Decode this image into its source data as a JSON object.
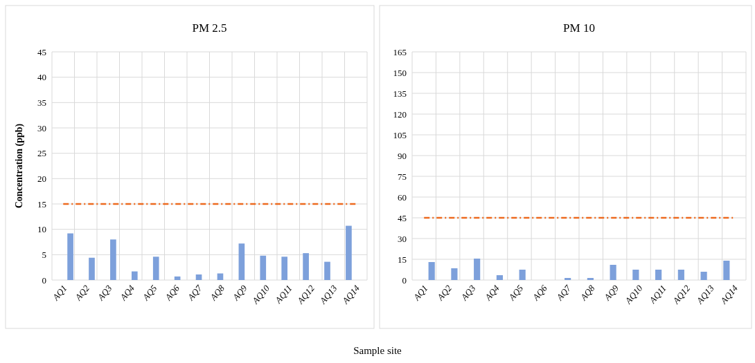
{
  "chart_data": [
    {
      "type": "bar",
      "title": "PM 2.5",
      "ylabel": "Concentration (ppb)",
      "xlabel": "Sample site",
      "categories": [
        "AQ1",
        "AQ2",
        "AQ3",
        "AQ4",
        "AQ5",
        "AQ6",
        "AQ7",
        "AQ8",
        "AQ9",
        "AQ10",
        "AQ11",
        "AQ12",
        "AQ13",
        "AQ14"
      ],
      "values": [
        9.2,
        4.4,
        8.0,
        1.7,
        4.6,
        0.7,
        1.1,
        1.3,
        7.2,
        4.8,
        4.6,
        5.3,
        3.6,
        10.7
      ],
      "color": "#7da0db",
      "ylim": [
        0,
        45
      ],
      "yticks": [
        0,
        5,
        10,
        15,
        20,
        25,
        30,
        35,
        40,
        45
      ],
      "grid": true,
      "ref_lines": [
        {
          "axis": "y",
          "value": 15,
          "color": "#ed6a1f",
          "line_style": "dashdot"
        }
      ]
    },
    {
      "type": "bar",
      "title": "PM 10",
      "categories": [
        "AQ1",
        "AQ2",
        "AQ3",
        "AQ4",
        "AQ5",
        "AQ6",
        "AQ7",
        "AQ8",
        "AQ9",
        "AQ10",
        "AQ11",
        "AQ12",
        "AQ13",
        "AQ14"
      ],
      "values": [
        13,
        8.5,
        15.5,
        3.5,
        7.5,
        0,
        1.5,
        1.5,
        11,
        7.5,
        7.5,
        7.5,
        6,
        14
      ],
      "color": "#7da0db",
      "ylim": [
        0,
        165
      ],
      "yticks": [
        0,
        15,
        30,
        45,
        60,
        75,
        90,
        105,
        120,
        135,
        150,
        165
      ],
      "grid": true,
      "ref_lines": [
        {
          "axis": "y",
          "value": 45,
          "color": "#ed6a1f",
          "line_style": "dashdot"
        }
      ]
    }
  ]
}
